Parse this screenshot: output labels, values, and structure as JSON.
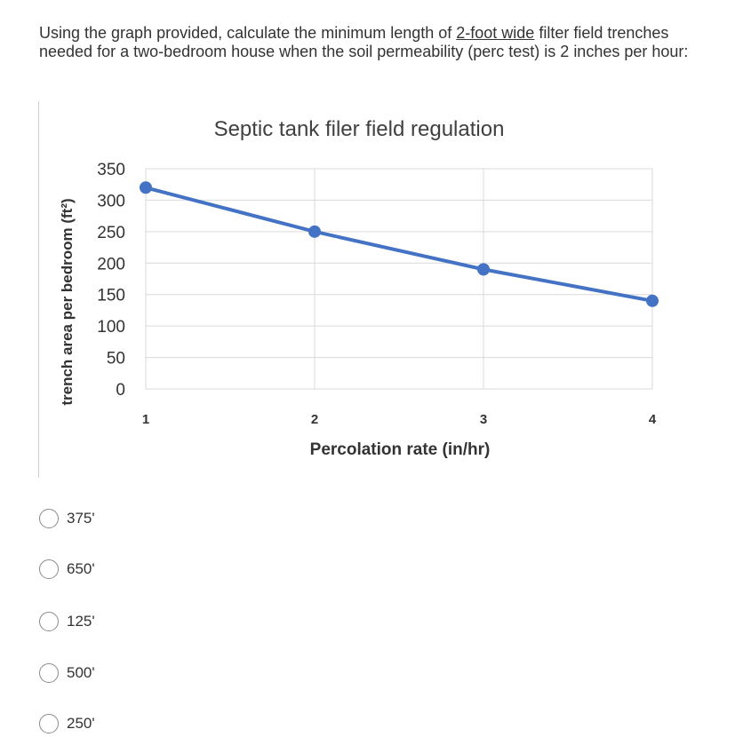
{
  "question": {
    "text_before": "Using the graph provided, calculate the minimum length of ",
    "underlined": "2-foot wide",
    "text_after": " filter field trenches needed for a two-bedroom house when the soil permeability (perc test) is 2 inches per hour:"
  },
  "chart_data": {
    "type": "line",
    "title": "Septic tank filer field regulation",
    "xlabel": "Percolation rate (in/hr)",
    "ylabel": "trench area per bedroom (ft²)",
    "categories": [
      "1",
      "2",
      "3",
      "4"
    ],
    "x": [
      1,
      2,
      3,
      4
    ],
    "yticks": [
      "350",
      "300",
      "250",
      "200",
      "150",
      "100",
      "50",
      "0"
    ],
    "ylim": [
      0,
      350
    ],
    "grid": true,
    "series": [
      {
        "values": [
          320,
          250,
          190,
          140
        ],
        "color": "#4472C4"
      }
    ]
  },
  "options": [
    {
      "label": "375'"
    },
    {
      "label": "650'"
    },
    {
      "label": "125'"
    },
    {
      "label": "500'"
    },
    {
      "label": "250'"
    }
  ]
}
